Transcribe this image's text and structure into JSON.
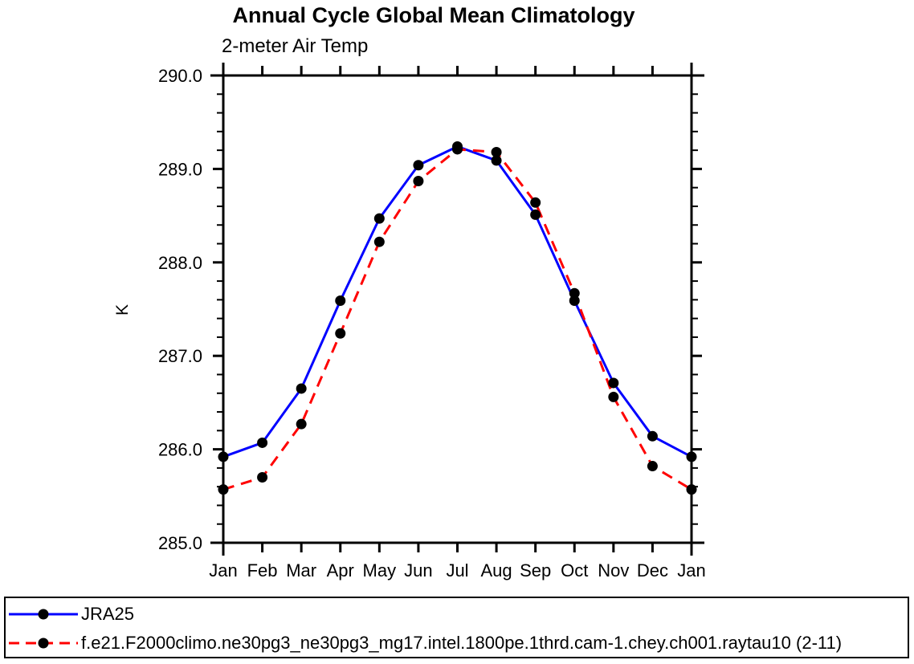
{
  "title": "Annual Cycle Global Mean Climatology",
  "subtitle": "2-meter Air Temp",
  "y_axis_label": "K",
  "axis_color": "#000000",
  "marker_color": "#000000",
  "chart_data": {
    "type": "line",
    "title": "Annual Cycle Global Mean Climatology",
    "subtitle": "2-meter Air Temp",
    "ylabel": "K",
    "xlabel": "",
    "x_categories": [
      "Jan",
      "Feb",
      "Mar",
      "Apr",
      "May",
      "Jun",
      "Jul",
      "Aug",
      "Sep",
      "Oct",
      "Nov",
      "Dec",
      "Jan"
    ],
    "ylim": [
      285.0,
      290.0
    ],
    "ytick_values": [
      285.0,
      286.0,
      287.0,
      288.0,
      289.0,
      290.0
    ],
    "ytick_labels": [
      "285.0",
      "286.0",
      "287.0",
      "288.0",
      "289.0",
      "290.0"
    ],
    "y_minor_tick_step": 0.2,
    "grid": false,
    "legend_position": "bottom",
    "series": [
      {
        "name": "JRA25",
        "color": "#0000ff",
        "line_style": "solid",
        "marker": "filled-circle",
        "marker_color": "#000000",
        "values": [
          285.92,
          286.07,
          286.65,
          287.59,
          288.47,
          289.04,
          289.24,
          289.09,
          288.51,
          287.59,
          286.71,
          286.14,
          285.92
        ]
      },
      {
        "name": "f.e21.F2000climo.ne30pg3_ne30pg3_mg17.intel.1800pe.1thrd.cam-1.chey.ch001.raytau10 (2-11)",
        "color": "#ff0000",
        "line_style": "dashed",
        "marker": "filled-circle",
        "marker_color": "#000000",
        "values": [
          285.57,
          285.7,
          286.27,
          287.24,
          288.22,
          288.87,
          289.21,
          289.18,
          288.64,
          287.67,
          286.56,
          285.82,
          285.57
        ]
      }
    ]
  }
}
